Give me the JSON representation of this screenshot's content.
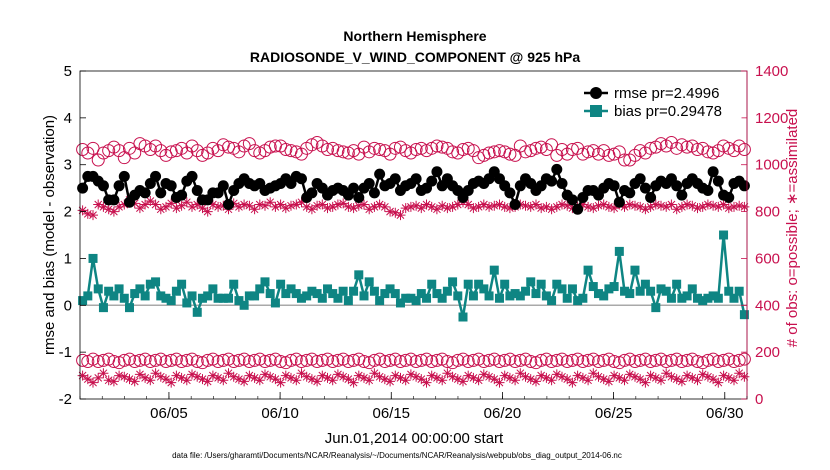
{
  "chart_data": {
    "type": "line",
    "title": "Northern Hemisphere",
    "subtitle": "RADIOSONDE_V_WIND_COMPONENT @ 925 hPa",
    "xlabel": "Jun.01,2014 00:00:00 start",
    "ylabel": "rmse and bias (model - observation)",
    "y2label": "# of obs: o=possible; ∗=assimilated",
    "footer": "data file: /Users/gharamti/Documents/NCAR/Reanalysis/~/Documents/NCAR/Reanalysis/webpub/obs_diag_output_2014-06.nc",
    "ylim": [
      -2,
      5
    ],
    "y2lim": [
      0,
      1400
    ],
    "xlim": [
      1,
      31
    ],
    "yticks": [
      "-2",
      "-1",
      "0",
      "1",
      "2",
      "3",
      "4",
      "5"
    ],
    "y2ticks": [
      "0",
      "200",
      "400",
      "600",
      "800",
      "1000",
      "1200",
      "1400"
    ],
    "xticks": [
      {
        "x": 5,
        "label": "06/05"
      },
      {
        "x": 10,
        "label": "06/10"
      },
      {
        "x": 15,
        "label": "06/15"
      },
      {
        "x": 20,
        "label": "06/20"
      },
      {
        "x": 25,
        "label": "06/25"
      },
      {
        "x": 30,
        "label": "06/30"
      }
    ],
    "grid": false,
    "legend_position": "top-right",
    "colors": {
      "rmse": "#000000",
      "bias": "#0e8583",
      "obs": "#c8104e",
      "zero_line": "#a9a9a9"
    },
    "series": [
      {
        "name": "rmse pr=2.4996",
        "values": [
          2.5,
          2.75,
          2.75,
          2.65,
          2.55,
          2.25,
          2.25,
          2.55,
          2.75,
          2.2,
          2.35,
          2.45,
          2.4,
          2.6,
          2.75,
          2.4,
          2.6,
          2.55,
          2.3,
          2.35,
          2.65,
          2.75,
          2.45,
          2.25,
          2.25,
          2.4,
          2.4,
          2.55,
          2.15,
          2.45,
          2.6,
          2.7,
          2.6,
          2.55,
          2.6,
          2.45,
          2.5,
          2.55,
          2.6,
          2.7,
          2.6,
          2.75,
          2.7,
          2.3,
          2.4,
          2.6,
          2.5,
          2.35,
          2.45,
          2.5,
          2.45,
          2.35,
          2.5,
          2.3,
          2.5,
          2.6,
          2.4,
          2.8,
          2.55,
          2.6,
          2.7,
          2.45,
          2.55,
          2.6,
          2.7,
          2.45,
          2.5,
          2.65,
          2.85,
          2.55,
          2.7,
          2.55,
          2.45,
          2.3,
          2.45,
          2.6,
          2.65,
          2.6,
          2.7,
          2.85,
          2.7,
          2.55,
          2.4,
          2.15,
          2.55,
          2.7,
          2.6,
          2.45,
          2.55,
          2.7,
          2.65,
          2.9,
          2.6,
          2.35,
          2.25,
          2.05,
          2.3,
          2.45,
          2.45,
          2.35,
          2.5,
          2.6,
          2.55,
          2.2,
          2.45,
          2.4,
          2.6,
          2.7,
          2.5,
          2.3,
          2.55,
          2.65,
          2.6,
          2.7,
          2.55,
          2.35,
          2.6,
          2.7,
          2.6,
          2.5,
          2.45,
          2.85,
          2.65,
          2.35,
          2.3,
          2.6,
          2.65,
          2.55
        ]
      },
      {
        "name": "bias pr=0.29478",
        "values": [
          0.1,
          0.2,
          1.0,
          0.35,
          -0.05,
          0.3,
          0.2,
          0.35,
          0.15,
          -0.05,
          0.25,
          0.35,
          0.2,
          0.45,
          0.5,
          0.2,
          0.15,
          0.1,
          0.3,
          0.45,
          0.05,
          0.2,
          -0.15,
          0.15,
          0.2,
          0.35,
          0.15,
          0.15,
          0.15,
          0.45,
          0.1,
          0.0,
          0.2,
          0.2,
          0.35,
          0.5,
          0.25,
          0.05,
          0.45,
          0.25,
          0.35,
          0.25,
          0.15,
          0.2,
          0.3,
          0.25,
          0.15,
          0.35,
          0.25,
          0.15,
          0.3,
          0.1,
          0.3,
          0.65,
          0.2,
          0.5,
          0.3,
          0.1,
          0.25,
          0.35,
          0.25,
          0.05,
          0.15,
          0.15,
          0.1,
          0.25,
          0.15,
          0.45,
          0.25,
          0.15,
          0.3,
          0.5,
          0.2,
          -0.25,
          0.45,
          0.2,
          0.45,
          0.35,
          0.2,
          0.75,
          0.15,
          0.45,
          0.2,
          0.25,
          0.2,
          0.3,
          0.5,
          0.25,
          0.45,
          0.2,
          0.1,
          0.45,
          0.35,
          0.15,
          0.35,
          0.1,
          0.15,
          0.75,
          0.4,
          0.25,
          0.2,
          0.35,
          0.4,
          1.15,
          0.3,
          0.25,
          0.75,
          0.3,
          0.45,
          0.3,
          -0.05,
          0.35,
          0.3,
          0.15,
          0.45,
          0.15,
          0.2,
          0.35,
          0.15,
          0.1,
          0.15,
          0.2,
          0.15,
          1.5,
          0.3,
          0.15,
          0.3,
          -0.2
        ]
      },
      {
        "name": "possible",
        "values": [
          1065,
          1050,
          1070,
          1020,
          1050,
          1060,
          1075,
          1060,
          1030,
          1070,
          1050,
          1090,
          1080,
          1065,
          1080,
          1060,
          1040,
          1055,
          1060,
          1070,
          1050,
          1080,
          1060,
          1040,
          1050,
          1070,
          1060,
          1085,
          1075,
          1070,
          1055,
          1080,
          1090,
          1060,
          1050,
          1060,
          1075,
          1080,
          1080,
          1065,
          1060,
          1055,
          1045,
          1070,
          1085,
          1095,
          1080,
          1065,
          1070,
          1060,
          1055,
          1050,
          1060,
          1045,
          1075,
          1055,
          1070,
          1065,
          1060,
          1045,
          1070,
          1075,
          1060,
          1050,
          1065,
          1070,
          1060,
          1070,
          1080,
          1075,
          1070,
          1055,
          1050,
          1065,
          1070,
          1060,
          1030,
          1040,
          1050,
          1055,
          1060,
          1055,
          1045,
          1040,
          1080,
          1055,
          1060,
          1070,
          1075,
          1065,
          1085,
          1040,
          1065,
          1045,
          1065,
          1070,
          1045,
          1055,
          1060,
          1045,
          1060,
          1040,
          1045,
          1055,
          1020,
          1020,
          1040,
          1060,
          1050,
          1070,
          1075,
          1090,
          1080,
          1095,
          1070,
          1085,
          1075,
          1080,
          1065,
          1070,
          1055,
          1050,
          1060,
          1080,
          1070,
          1060,
          1080,
          1065
        ]
      },
      {
        "name": "assimilated",
        "values": [
          805,
          790,
          785,
          830,
          820,
          810,
          800,
          820,
          830,
          850,
          835,
          815,
          830,
          845,
          830,
          810,
          820,
          835,
          815,
          825,
          840,
          820,
          830,
          815,
          800,
          830,
          820,
          825,
          810,
          835,
          820,
          830,
          825,
          810,
          830,
          825,
          840,
          820,
          830,
          815,
          825,
          830,
          840,
          820,
          810,
          825,
          830,
          815,
          820,
          830,
          835,
          820,
          815,
          825,
          830,
          810,
          820,
          830,
          820,
          800,
          795,
          785,
          815,
          820,
          825,
          815,
          830,
          820,
          810,
          825,
          815,
          820,
          830,
          840,
          830,
          815,
          820,
          830,
          820,
          825,
          830,
          820,
          815,
          820,
          830,
          825,
          820,
          830,
          815,
          820,
          810,
          820,
          830,
          825,
          815,
          820,
          830,
          820,
          815,
          825,
          830,
          820,
          815,
          830,
          820,
          830,
          825,
          820,
          810,
          820,
          830,
          825,
          820,
          830,
          810,
          820,
          830,
          825,
          815,
          820,
          830,
          825,
          820,
          830,
          815,
          820,
          825,
          820
        ]
      },
      {
        "name": "possible-low",
        "values": [
          165,
          160,
          170,
          160,
          165,
          170,
          160,
          155,
          165,
          170,
          160,
          165,
          170,
          160,
          165,
          170,
          160,
          165,
          170,
          160,
          165,
          170,
          160,
          155,
          165,
          170,
          160,
          165,
          170,
          160,
          165,
          170,
          160,
          165,
          170,
          160,
          165,
          170,
          160,
          155,
          165,
          170,
          160,
          165,
          170,
          160,
          165,
          170,
          160,
          165,
          170,
          160,
          165,
          170,
          160,
          155,
          165,
          170,
          160,
          165,
          170,
          160,
          165,
          170,
          160,
          165,
          170,
          160,
          165,
          170,
          160,
          155,
          165,
          170,
          160,
          165,
          170,
          160,
          165,
          170,
          160,
          165,
          170,
          160,
          165,
          170,
          160,
          155,
          165,
          170,
          160,
          165,
          170,
          160,
          165,
          170,
          160,
          165,
          170,
          160,
          165,
          170,
          160,
          155,
          165,
          170,
          160,
          165,
          170,
          160,
          165,
          170,
          160,
          165,
          170,
          160,
          165,
          170,
          160,
          155,
          165,
          170,
          160,
          165,
          170,
          160,
          165,
          170
        ]
      },
      {
        "name": "assimilated-low",
        "values": [
          100,
          85,
          70,
          90,
          110,
          80,
          75,
          100,
          95,
          85,
          75,
          105,
          90,
          80,
          110,
          95,
          85,
          70,
          100,
          90,
          80,
          105,
          95,
          85,
          75,
          100,
          90,
          80,
          110,
          95,
          85,
          75,
          100,
          90,
          80,
          105,
          95,
          85,
          70,
          100,
          90,
          80,
          110,
          95,
          85,
          75,
          100,
          90,
          80,
          105,
          95,
          85,
          70,
          100,
          90,
          80,
          110,
          95,
          85,
          75,
          100,
          90,
          80,
          105,
          95,
          85,
          70,
          100,
          90,
          80,
          110,
          95,
          85,
          75,
          100,
          90,
          80,
          105,
          95,
          85,
          70,
          100,
          90,
          80,
          110,
          95,
          85,
          75,
          100,
          90,
          80,
          105,
          95,
          85,
          70,
          100,
          90,
          80,
          110,
          95,
          85,
          75,
          100,
          90,
          80,
          105,
          95,
          85,
          70,
          100,
          90,
          80,
          110,
          95,
          85,
          75,
          100,
          90,
          80,
          105,
          95,
          85,
          70,
          100,
          90,
          80,
          110,
          95
        ]
      }
    ]
  }
}
